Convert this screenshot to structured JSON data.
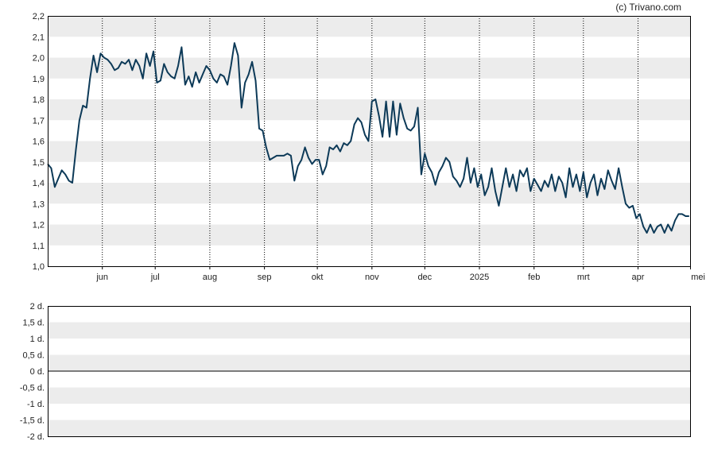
{
  "credit": "(c) Trivano.com",
  "colors": {
    "line": "#0d3a58",
    "band": "#ececec",
    "axis": "#000000",
    "vgrid": "#000000"
  },
  "chart_data": [
    {
      "type": "line",
      "title": "",
      "xlabel": "",
      "ylabel": "",
      "ylim": [
        1.0,
        2.2
      ],
      "yticks": [
        "1,0",
        "1,1",
        "1,2",
        "1,3",
        "1,4",
        "1,5",
        "1,6",
        "1,7",
        "1,8",
        "1,9",
        "2,0",
        "2,1",
        "2,2"
      ],
      "xticks": [
        {
          "label": "jun",
          "date": "2024-06-01"
        },
        {
          "label": "jul",
          "date": "2024-07-01"
        },
        {
          "label": "aug",
          "date": "2024-08-01"
        },
        {
          "label": "sep",
          "date": "2024-09-01"
        },
        {
          "label": "okt",
          "date": "2024-10-01"
        },
        {
          "label": "nov",
          "date": "2024-11-01"
        },
        {
          "label": "dec",
          "date": "2024-12-01"
        },
        {
          "label": "2025",
          "date": "2025-01-01"
        },
        {
          "label": "feb",
          "date": "2025-02-01"
        },
        {
          "label": "mrt",
          "date": "2025-03-01"
        },
        {
          "label": "apr",
          "date": "2025-04-01"
        },
        {
          "label": "mei",
          "date": "2025-05-01"
        }
      ],
      "xlim": [
        "2024-05-01",
        "2025-05-01"
      ],
      "grid": "alternating horizontal bands, dotted vertical month lines",
      "series": [
        {
          "values": [
            [
              "2024-05-01",
              1.49
            ],
            [
              "2024-05-03",
              1.47
            ],
            [
              "2024-05-05",
              1.38
            ],
            [
              "2024-05-07",
              1.42
            ],
            [
              "2024-05-09",
              1.46
            ],
            [
              "2024-05-11",
              1.44
            ],
            [
              "2024-05-13",
              1.41
            ],
            [
              "2024-05-15",
              1.4
            ],
            [
              "2024-05-17",
              1.56
            ],
            [
              "2024-05-19",
              1.7
            ],
            [
              "2024-05-21",
              1.77
            ],
            [
              "2024-05-23",
              1.76
            ],
            [
              "2024-05-25",
              1.9
            ],
            [
              "2024-05-27",
              2.01
            ],
            [
              "2024-05-29",
              1.93
            ],
            [
              "2024-05-31",
              2.02
            ],
            [
              "2024-06-02",
              2.0
            ],
            [
              "2024-06-04",
              1.99
            ],
            [
              "2024-06-06",
              1.97
            ],
            [
              "2024-06-08",
              1.94
            ],
            [
              "2024-06-10",
              1.95
            ],
            [
              "2024-06-12",
              1.98
            ],
            [
              "2024-06-14",
              1.97
            ],
            [
              "2024-06-16",
              1.99
            ],
            [
              "2024-06-18",
              1.94
            ],
            [
              "2024-06-20",
              1.99
            ],
            [
              "2024-06-22",
              1.96
            ],
            [
              "2024-06-24",
              1.9
            ],
            [
              "2024-06-26",
              2.02
            ],
            [
              "2024-06-28",
              1.96
            ],
            [
              "2024-06-30",
              2.03
            ],
            [
              "2024-07-02",
              1.88
            ],
            [
              "2024-07-04",
              1.89
            ],
            [
              "2024-07-06",
              1.97
            ],
            [
              "2024-07-08",
              1.93
            ],
            [
              "2024-07-10",
              1.91
            ],
            [
              "2024-07-12",
              1.9
            ],
            [
              "2024-07-14",
              1.96
            ],
            [
              "2024-07-16",
              2.05
            ],
            [
              "2024-07-18",
              1.87
            ],
            [
              "2024-07-20",
              1.91
            ],
            [
              "2024-07-22",
              1.86
            ],
            [
              "2024-07-24",
              1.93
            ],
            [
              "2024-07-26",
              1.88
            ],
            [
              "2024-07-28",
              1.92
            ],
            [
              "2024-07-30",
              1.96
            ],
            [
              "2024-08-01",
              1.94
            ],
            [
              "2024-08-03",
              1.9
            ],
            [
              "2024-08-05",
              1.88
            ],
            [
              "2024-08-07",
              1.92
            ],
            [
              "2024-08-09",
              1.91
            ],
            [
              "2024-08-11",
              1.87
            ],
            [
              "2024-08-13",
              1.96
            ],
            [
              "2024-08-15",
              2.07
            ],
            [
              "2024-08-17",
              2.01
            ],
            [
              "2024-08-19",
              1.76
            ],
            [
              "2024-08-21",
              1.88
            ],
            [
              "2024-08-23",
              1.92
            ],
            [
              "2024-08-25",
              1.98
            ],
            [
              "2024-08-27",
              1.89
            ],
            [
              "2024-08-29",
              1.66
            ],
            [
              "2024-08-31",
              1.65
            ],
            [
              "2024-09-02",
              1.57
            ],
            [
              "2024-09-04",
              1.51
            ],
            [
              "2024-09-06",
              1.52
            ],
            [
              "2024-09-08",
              1.53
            ],
            [
              "2024-09-10",
              1.53
            ],
            [
              "2024-09-12",
              1.53
            ],
            [
              "2024-09-14",
              1.54
            ],
            [
              "2024-09-16",
              1.53
            ],
            [
              "2024-09-18",
              1.41
            ],
            [
              "2024-09-20",
              1.48
            ],
            [
              "2024-09-22",
              1.51
            ],
            [
              "2024-09-24",
              1.57
            ],
            [
              "2024-09-26",
              1.52
            ],
            [
              "2024-09-28",
              1.49
            ],
            [
              "2024-09-30",
              1.51
            ],
            [
              "2024-10-02",
              1.51
            ],
            [
              "2024-10-04",
              1.44
            ],
            [
              "2024-10-06",
              1.48
            ],
            [
              "2024-10-08",
              1.57
            ],
            [
              "2024-10-10",
              1.56
            ],
            [
              "2024-10-12",
              1.58
            ],
            [
              "2024-10-14",
              1.55
            ],
            [
              "2024-10-16",
              1.59
            ],
            [
              "2024-10-18",
              1.58
            ],
            [
              "2024-10-20",
              1.6
            ],
            [
              "2024-10-22",
              1.68
            ],
            [
              "2024-10-24",
              1.71
            ],
            [
              "2024-10-26",
              1.69
            ],
            [
              "2024-10-28",
              1.63
            ],
            [
              "2024-10-30",
              1.6
            ],
            [
              "2024-11-01",
              1.79
            ],
            [
              "2024-11-03",
              1.8
            ],
            [
              "2024-11-05",
              1.72
            ],
            [
              "2024-11-07",
              1.62
            ],
            [
              "2024-11-09",
              1.79
            ],
            [
              "2024-11-11",
              1.62
            ],
            [
              "2024-11-13",
              1.79
            ],
            [
              "2024-11-15",
              1.63
            ],
            [
              "2024-11-17",
              1.78
            ],
            [
              "2024-11-19",
              1.71
            ],
            [
              "2024-11-21",
              1.66
            ],
            [
              "2024-11-23",
              1.65
            ],
            [
              "2024-11-25",
              1.67
            ],
            [
              "2024-11-27",
              1.76
            ],
            [
              "2024-11-29",
              1.44
            ],
            [
              "2024-12-01",
              1.54
            ],
            [
              "2024-12-03",
              1.48
            ],
            [
              "2024-12-05",
              1.45
            ],
            [
              "2024-12-07",
              1.39
            ],
            [
              "2024-12-09",
              1.45
            ],
            [
              "2024-12-11",
              1.48
            ],
            [
              "2024-12-13",
              1.52
            ],
            [
              "2024-12-15",
              1.5
            ],
            [
              "2024-12-17",
              1.43
            ],
            [
              "2024-12-19",
              1.41
            ],
            [
              "2024-12-21",
              1.38
            ],
            [
              "2024-12-23",
              1.42
            ],
            [
              "2024-12-25",
              1.52
            ],
            [
              "2024-12-27",
              1.4
            ],
            [
              "2024-12-29",
              1.47
            ],
            [
              "2024-12-31",
              1.38
            ],
            [
              "2025-01-02",
              1.44
            ],
            [
              "2025-01-04",
              1.34
            ],
            [
              "2025-01-06",
              1.38
            ],
            [
              "2025-01-08",
              1.47
            ],
            [
              "2025-01-10",
              1.36
            ],
            [
              "2025-01-12",
              1.29
            ],
            [
              "2025-01-14",
              1.38
            ],
            [
              "2025-01-16",
              1.47
            ],
            [
              "2025-01-18",
              1.38
            ],
            [
              "2025-01-20",
              1.44
            ],
            [
              "2025-01-22",
              1.36
            ],
            [
              "2025-01-24",
              1.46
            ],
            [
              "2025-01-26",
              1.43
            ],
            [
              "2025-01-28",
              1.47
            ],
            [
              "2025-01-30",
              1.36
            ],
            [
              "2025-02-01",
              1.42
            ],
            [
              "2025-02-03",
              1.39
            ],
            [
              "2025-02-05",
              1.36
            ],
            [
              "2025-02-07",
              1.41
            ],
            [
              "2025-02-09",
              1.38
            ],
            [
              "2025-02-11",
              1.44
            ],
            [
              "2025-02-13",
              1.36
            ],
            [
              "2025-02-15",
              1.43
            ],
            [
              "2025-02-17",
              1.4
            ],
            [
              "2025-02-19",
              1.33
            ],
            [
              "2025-02-21",
              1.47
            ],
            [
              "2025-02-23",
              1.38
            ],
            [
              "2025-02-25",
              1.44
            ],
            [
              "2025-02-27",
              1.36
            ],
            [
              "2025-03-01",
              1.45
            ],
            [
              "2025-03-03",
              1.33
            ],
            [
              "2025-03-05",
              1.4
            ],
            [
              "2025-03-07",
              1.44
            ],
            [
              "2025-03-09",
              1.34
            ],
            [
              "2025-03-11",
              1.42
            ],
            [
              "2025-03-13",
              1.37
            ],
            [
              "2025-03-15",
              1.46
            ],
            [
              "2025-03-17",
              1.41
            ],
            [
              "2025-03-19",
              1.37
            ],
            [
              "2025-03-21",
              1.47
            ],
            [
              "2025-03-23",
              1.38
            ],
            [
              "2025-03-25",
              1.3
            ],
            [
              "2025-03-27",
              1.28
            ],
            [
              "2025-03-29",
              1.29
            ],
            [
              "2025-03-31",
              1.23
            ],
            [
              "2025-04-02",
              1.25
            ],
            [
              "2025-04-04",
              1.19
            ],
            [
              "2025-04-06",
              1.16
            ],
            [
              "2025-04-08",
              1.2
            ],
            [
              "2025-04-10",
              1.16
            ],
            [
              "2025-04-12",
              1.19
            ],
            [
              "2025-04-14",
              1.2
            ],
            [
              "2025-04-16",
              1.16
            ],
            [
              "2025-04-18",
              1.2
            ],
            [
              "2025-04-20",
              1.17
            ],
            [
              "2025-04-22",
              1.22
            ],
            [
              "2025-04-24",
              1.25
            ],
            [
              "2025-04-26",
              1.25
            ],
            [
              "2025-04-28",
              1.24
            ],
            [
              "2025-04-30",
              1.24
            ]
          ]
        }
      ]
    },
    {
      "type": "line",
      "title": "",
      "xlabel": "",
      "ylabel": "",
      "ylim": [
        -2,
        2
      ],
      "yticks": [
        "-2 d.",
        "-1,5 d.",
        "-1 d.",
        "-0,5 d.",
        "0 d.",
        "0,5 d.",
        "1 d.",
        "1,5 d.",
        "2 d."
      ],
      "zero_line": true,
      "grid": "alternating horizontal bands",
      "series": []
    }
  ]
}
